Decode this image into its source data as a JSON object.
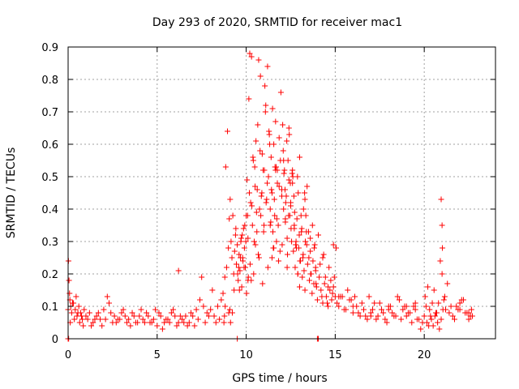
{
  "chart_data": {
    "type": "scatter",
    "title": "Day 293 of 2020, SRMTID for receiver mac1",
    "xlabel": "GPS time / hours",
    "ylabel": "SRMTID / TECUs",
    "xlim": [
      0,
      24
    ],
    "ylim": [
      0,
      0.9
    ],
    "xticks": [
      0,
      5,
      10,
      15,
      20
    ],
    "xtick_labels": [
      "0",
      "5",
      "10",
      "15",
      "20"
    ],
    "yticks": [
      0,
      0.1,
      0.2,
      0.3,
      0.4,
      0.5,
      0.6,
      0.7,
      0.8,
      0.9
    ],
    "ytick_labels": [
      "0",
      "0.1",
      "0.2",
      "0.3",
      "0.4",
      "0.5",
      "0.6",
      "0.7",
      "0.8",
      "0.9"
    ],
    "grid": true,
    "marker": "+",
    "color": "#ff0000",
    "series": [
      {
        "name": "mac1",
        "x": [
          0.0,
          0.05,
          0.1,
          0.15,
          0.2,
          0.3,
          0.4,
          0.5,
          0.6,
          0.7,
          0.8,
          0.9,
          1.0,
          1.2,
          1.4,
          1.6,
          1.8,
          2.0,
          2.2,
          2.3,
          2.4,
          2.6,
          2.8,
          3.0,
          3.2,
          3.4,
          3.6,
          3.8,
          4.0,
          4.2,
          4.4,
          4.6,
          4.8,
          5.0,
          5.1,
          5.2,
          5.4,
          5.6,
          5.8,
          6.0,
          6.2,
          6.4,
          6.6,
          6.8,
          7.0,
          7.2,
          7.4,
          7.5,
          7.6,
          7.8,
          8.0,
          8.2,
          8.4,
          8.6,
          8.7,
          8.8,
          8.85,
          8.9,
          8.95,
          9.0,
          9.05,
          9.1,
          9.15,
          9.2,
          9.25,
          9.3,
          9.35,
          9.4,
          9.45,
          9.5,
          9.55,
          9.6,
          9.65,
          9.7,
          9.75,
          9.8,
          9.85,
          9.9,
          9.95,
          10.0,
          10.05,
          10.1,
          10.15,
          10.2,
          10.25,
          10.3,
          10.35,
          10.4,
          10.45,
          10.5,
          10.55,
          10.6,
          10.65,
          10.7,
          10.75,
          10.8,
          10.85,
          10.9,
          10.95,
          11.0,
          11.05,
          11.1,
          11.15,
          11.2,
          11.25,
          11.3,
          11.35,
          11.4,
          11.45,
          11.5,
          11.55,
          11.6,
          11.65,
          11.7,
          11.75,
          11.8,
          11.85,
          11.9,
          11.95,
          12.0,
          12.05,
          12.1,
          12.15,
          12.2,
          12.25,
          12.3,
          12.35,
          12.4,
          12.45,
          12.5,
          12.55,
          12.6,
          12.65,
          12.7,
          12.75,
          12.8,
          12.85,
          12.9,
          12.95,
          13.0,
          13.05,
          13.1,
          13.15,
          13.2,
          13.25,
          13.3,
          13.35,
          13.4,
          13.45,
          13.5,
          13.55,
          13.6,
          13.65,
          13.7,
          13.75,
          13.8,
          13.85,
          13.9,
          13.95,
          14.0,
          14.1,
          14.2,
          14.3,
          14.4,
          14.5,
          14.6,
          14.7,
          14.8,
          14.9,
          15.0,
          15.1,
          15.2,
          15.4,
          15.6,
          15.8,
          16.0,
          16.2,
          16.4,
          16.6,
          16.8,
          17.0,
          17.2,
          17.4,
          17.6,
          17.8,
          18.0,
          18.2,
          18.4,
          18.6,
          18.8,
          19.0,
          19.2,
          19.4,
          19.6,
          19.8,
          19.9,
          20.0,
          20.1,
          20.2,
          20.3,
          20.4,
          20.5,
          20.6,
          20.7,
          20.8,
          20.9,
          21.0,
          21.1,
          21.2,
          21.4,
          21.6,
          21.8,
          22.0,
          22.2,
          22.4,
          22.6,
          22.7,
          0.02,
          0.08,
          0.12,
          0.25,
          0.35,
          0.45,
          0.55,
          0.65,
          0.75,
          0.85,
          1.1,
          1.3,
          1.5,
          1.7,
          1.9,
          2.1,
          2.5,
          2.7,
          2.9,
          3.1,
          3.3,
          3.5,
          3.7,
          3.9,
          4.1,
          4.3,
          4.5,
          4.7,
          4.9,
          5.3,
          5.5,
          5.7,
          5.9,
          6.1,
          6.3,
          6.5,
          6.7,
          6.9,
          7.1,
          7.3,
          7.7,
          7.9,
          8.1,
          8.3,
          8.5,
          9.02,
          9.12,
          9.22,
          9.32,
          9.42,
          9.52,
          9.62,
          9.72,
          9.82,
          9.92,
          10.02,
          10.12,
          10.22,
          10.32,
          10.42,
          10.52,
          10.62,
          10.72,
          10.82,
          10.92,
          11.02,
          11.12,
          11.22,
          11.32,
          11.42,
          11.52,
          11.62,
          11.72,
          11.82,
          11.92,
          12.02,
          12.12,
          12.22,
          12.32,
          12.42,
          12.52,
          12.62,
          12.72,
          12.82,
          12.92,
          13.02,
          13.12,
          13.22,
          13.32,
          13.42,
          13.52,
          13.62,
          13.72,
          13.82,
          13.92,
          14.05,
          14.15,
          14.25,
          14.35,
          14.45,
          14.55,
          14.65,
          14.75,
          14.85,
          14.95,
          15.3,
          15.5,
          15.7,
          15.9,
          16.1,
          16.3,
          16.5,
          16.7,
          16.9,
          17.1,
          17.3,
          17.5,
          17.7,
          17.9,
          18.1,
          18.3,
          18.5,
          18.7,
          18.9,
          19.1,
          19.3,
          19.5,
          19.7,
          20.05,
          20.15,
          20.25,
          20.35,
          20.45,
          20.55,
          20.65,
          20.75,
          20.85,
          20.95,
          21.05,
          21.15,
          21.3,
          21.5,
          21.7,
          21.9,
          22.1,
          22.3,
          22.5,
          22.65,
          8.75,
          8.78,
          8.82,
          9.08,
          10.08,
          10.18,
          10.28,
          10.38,
          10.48,
          10.58,
          10.68,
          10.78,
          10.88,
          10.98,
          11.08,
          11.18,
          11.28,
          11.38,
          11.48,
          11.58,
          11.68,
          12.08,
          12.18,
          12.28,
          12.38,
          12.48,
          12.58,
          12.68,
          12.78,
          12.88,
          12.98,
          13.08,
          13.18,
          13.28,
          13.38,
          15.05,
          20.95,
          21.0,
          21.02,
          6.2,
          12.3,
          12.9,
          14.0,
          14.05,
          0.0,
          0.03,
          9.5,
          9.58,
          9.68,
          9.78,
          9.88,
          9.98,
          10.1,
          11.35,
          11.45,
          11.55,
          11.65,
          11.75,
          11.85,
          12.0,
          12.1,
          12.2,
          12.4,
          12.5,
          12.6,
          12.7,
          13.0,
          13.3,
          13.6,
          13.9,
          14.3,
          14.6,
          14.9,
          15.2,
          16.0,
          17.0,
          18.0,
          19.0,
          19.5,
          22.0,
          22.5
        ],
        "y": [
          0.09,
          0.18,
          0.12,
          0.1,
          0.08,
          0.11,
          0.09,
          0.07,
          0.1,
          0.08,
          0.06,
          0.09,
          0.07,
          0.08,
          0.05,
          0.07,
          0.06,
          0.09,
          0.13,
          0.11,
          0.08,
          0.07,
          0.06,
          0.08,
          0.07,
          0.06,
          0.08,
          0.05,
          0.07,
          0.06,
          0.08,
          0.05,
          0.06,
          0.04,
          0.08,
          0.07,
          0.05,
          0.06,
          0.08,
          0.07,
          0.05,
          0.06,
          0.07,
          0.05,
          0.07,
          0.09,
          0.12,
          0.19,
          0.1,
          0.08,
          0.09,
          0.07,
          0.1,
          0.12,
          0.14,
          0.19,
          0.53,
          0.22,
          0.64,
          0.28,
          0.37,
          0.43,
          0.3,
          0.25,
          0.38,
          0.2,
          0.27,
          0.32,
          0.23,
          0.29,
          0.18,
          0.26,
          0.21,
          0.3,
          0.16,
          0.25,
          0.34,
          0.28,
          0.22,
          0.38,
          0.49,
          0.31,
          0.74,
          0.88,
          0.42,
          0.87,
          0.35,
          0.55,
          0.3,
          0.47,
          0.61,
          0.33,
          0.66,
          0.86,
          0.4,
          0.81,
          0.44,
          0.57,
          0.52,
          0.35,
          0.78,
          0.72,
          0.43,
          0.84,
          0.5,
          0.63,
          0.4,
          0.56,
          0.45,
          0.33,
          0.6,
          0.38,
          0.52,
          0.3,
          0.48,
          0.35,
          0.47,
          0.27,
          0.76,
          0.46,
          0.66,
          0.4,
          0.52,
          0.36,
          0.44,
          0.31,
          0.55,
          0.49,
          0.38,
          0.42,
          0.3,
          0.52,
          0.27,
          0.35,
          0.22,
          0.3,
          0.37,
          0.2,
          0.28,
          0.16,
          0.24,
          0.33,
          0.19,
          0.26,
          0.21,
          0.15,
          0.38,
          0.29,
          0.23,
          0.33,
          0.18,
          0.27,
          0.2,
          0.14,
          0.24,
          0.17,
          0.29,
          0.21,
          0.16,
          0.12,
          0.19,
          0.15,
          0.11,
          0.17,
          0.13,
          0.1,
          0.15,
          0.12,
          0.29,
          0.13,
          0.11,
          0.1,
          0.13,
          0.09,
          0.12,
          0.08,
          0.1,
          0.07,
          0.09,
          0.06,
          0.08,
          0.11,
          0.07,
          0.09,
          0.06,
          0.1,
          0.08,
          0.07,
          0.12,
          0.09,
          0.07,
          0.08,
          0.1,
          0.06,
          0.03,
          0.05,
          0.07,
          0.1,
          0.16,
          0.09,
          0.06,
          0.04,
          0.07,
          0.08,
          0.11,
          0.24,
          0.2,
          0.12,
          0.09,
          0.08,
          0.07,
          0.1,
          0.09,
          0.12,
          0.08,
          0.07,
          0.07,
          0.24,
          0.14,
          0.05,
          0.11,
          0.06,
          0.13,
          0.08,
          0.05,
          0.07,
          0.04,
          0.06,
          0.04,
          0.06,
          0.08,
          0.04,
          0.06,
          0.05,
          0.05,
          0.06,
          0.09,
          0.05,
          0.04,
          0.07,
          0.05,
          0.09,
          0.05,
          0.07,
          0.05,
          0.09,
          0.03,
          0.06,
          0.05,
          0.09,
          0.04,
          0.07,
          0.05,
          0.04,
          0.08,
          0.04,
          0.06,
          0.05,
          0.07,
          0.15,
          0.05,
          0.06,
          0.08,
          0.05,
          0.08,
          0.15,
          0.34,
          0.2,
          0.15,
          0.31,
          0.24,
          0.35,
          0.14,
          0.19,
          0.23,
          0.41,
          0.2,
          0.29,
          0.46,
          0.25,
          0.38,
          0.17,
          0.52,
          0.42,
          0.22,
          0.6,
          0.46,
          0.28,
          0.53,
          0.37,
          0.24,
          0.55,
          0.29,
          0.51,
          0.42,
          0.26,
          0.63,
          0.34,
          0.5,
          0.39,
          0.28,
          0.45,
          0.24,
          0.34,
          0.4,
          0.3,
          0.47,
          0.25,
          0.2,
          0.35,
          0.28,
          0.17,
          0.32,
          0.23,
          0.13,
          0.26,
          0.19,
          0.11,
          0.22,
          0.18,
          0.14,
          0.19,
          0.13,
          0.09,
          0.15,
          0.12,
          0.13,
          0.08,
          0.11,
          0.07,
          0.13,
          0.09,
          0.06,
          0.11,
          0.08,
          0.05,
          0.1,
          0.07,
          0.13,
          0.06,
          0.1,
          0.08,
          0.05,
          0.11,
          0.06,
          0.13,
          0.05,
          0.04,
          0.07,
          0.11,
          0.15,
          0.08,
          0.05,
          0.03,
          0.06,
          0.09,
          0.13,
          0.17,
          0.1,
          0.06,
          0.09,
          0.12,
          0.08,
          0.06,
          0.09,
          0.05,
          0.07,
          0.1,
          0.09,
          0.38,
          0.45,
          0.18,
          0.56,
          0.53,
          0.39,
          0.26,
          0.58,
          0.45,
          0.33,
          0.7,
          0.48,
          0.64,
          0.36,
          0.71,
          0.43,
          0.53,
          0.58,
          0.46,
          0.61,
          0.38,
          0.48,
          0.51,
          0.44,
          0.29,
          0.5,
          0.32,
          0.38,
          0.25,
          0.45,
          0.33,
          0.28,
          0.43,
          0.35,
          0.28,
          0.21,
          0.22,
          0.2,
          0.0,
          0.0,
          0.0,
          0.0,
          0.0,
          0.22,
          0.25,
          0.32,
          0.22,
          0.3,
          0.18,
          0.35,
          0.25,
          0.28,
          0.67,
          0.52,
          0.62,
          0.44,
          0.55,
          0.37,
          0.65,
          0.41,
          0.48,
          0.34,
          0.56,
          0.43,
          0.31,
          0.22,
          0.25,
          0.16,
          0.16,
          0.13,
          0.1,
          0.07,
          0.09,
          0.1,
          0.09,
          0.11,
          0.08
        ]
      }
    ]
  }
}
